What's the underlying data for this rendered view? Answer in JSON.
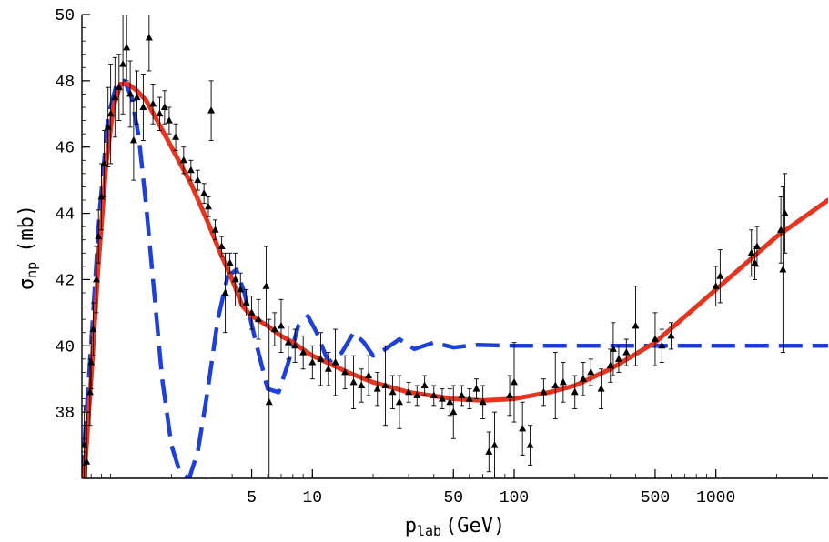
{
  "chart_data": {
    "type": "scatter",
    "title": "",
    "xlabel": "p_lab (GeV)",
    "xlabel_main": "p",
    "xlabel_sub": "lab",
    "xlabel_unit": "(GeV)",
    "ylabel": "σ_np (mb)",
    "ylabel_main": "σ",
    "ylabel_sub": "np",
    "ylabel_unit": "(mb)",
    "xscale": "log",
    "xlim": [
      0.72,
      3600
    ],
    "ylim": [
      36,
      50
    ],
    "xticks": [
      5,
      10,
      50,
      100,
      500,
      1000
    ],
    "xtick_labels": [
      "5",
      "10",
      "50",
      "100",
      "500",
      "1000"
    ],
    "yticks": [
      38,
      40,
      42,
      44,
      46,
      48,
      50
    ],
    "ytick_labels": [
      "38",
      "40",
      "42",
      "44",
      "46",
      "48",
      "50"
    ],
    "grid": false,
    "colors": {
      "data": "#000000",
      "fit": "#e8341c",
      "model": "#1d3fdc"
    },
    "series": [
      {
        "type": "scatter",
        "marker": "triangle",
        "points": [
          {
            "x": 0.74,
            "y": 37.0,
            "err": 1.2
          },
          {
            "x": 0.76,
            "y": 36.5,
            "err": 1.5
          },
          {
            "x": 0.79,
            "y": 38.6,
            "err": 1.0
          },
          {
            "x": 0.8,
            "y": 39.5,
            "err": 0.8
          },
          {
            "x": 0.82,
            "y": 40.5,
            "err": 0.8
          },
          {
            "x": 0.85,
            "y": 42.0,
            "err": 1.0
          },
          {
            "x": 0.87,
            "y": 43.3,
            "err": 0.8
          },
          {
            "x": 0.9,
            "y": 44.5,
            "err": 1.0
          },
          {
            "x": 0.93,
            "y": 45.5,
            "err": 1.0
          },
          {
            "x": 0.97,
            "y": 46.6,
            "err": 1.2
          },
          {
            "x": 1.0,
            "y": 47.0,
            "err": 1.5
          },
          {
            "x": 1.05,
            "y": 47.5,
            "err": 1.2
          },
          {
            "x": 1.1,
            "y": 47.8,
            "err": 1.0
          },
          {
            "x": 1.15,
            "y": 48.5,
            "err": 1.5
          },
          {
            "x": 1.2,
            "y": 49.0,
            "err": 1.0
          },
          {
            "x": 1.25,
            "y": 47.6,
            "err": 1.0
          },
          {
            "x": 1.3,
            "y": 46.2,
            "err": 1.2
          },
          {
            "x": 1.35,
            "y": 47.5,
            "err": 0.8
          },
          {
            "x": 1.45,
            "y": 47.2,
            "err": 1.0
          },
          {
            "x": 1.55,
            "y": 49.3,
            "err": 1.0
          },
          {
            "x": 1.62,
            "y": 47.3,
            "err": 0.6
          },
          {
            "x": 1.75,
            "y": 47.0,
            "err": 0.5
          },
          {
            "x": 1.85,
            "y": 47.2,
            "err": 0.5
          },
          {
            "x": 1.95,
            "y": 46.8,
            "err": 0.4
          },
          {
            "x": 2.1,
            "y": 46.3,
            "err": 0.4
          },
          {
            "x": 2.3,
            "y": 45.6,
            "err": 0.4
          },
          {
            "x": 2.5,
            "y": 45.3,
            "err": 0.3
          },
          {
            "x": 2.7,
            "y": 45.0,
            "err": 0.3
          },
          {
            "x": 2.9,
            "y": 44.6,
            "err": 0.3
          },
          {
            "x": 3.05,
            "y": 44.2,
            "err": 0.3
          },
          {
            "x": 3.15,
            "y": 47.1,
            "err": 0.9
          },
          {
            "x": 3.3,
            "y": 43.5,
            "err": 0.3
          },
          {
            "x": 3.55,
            "y": 43.0,
            "err": 0.3
          },
          {
            "x": 3.7,
            "y": 41.6,
            "err": 1.2
          },
          {
            "x": 3.9,
            "y": 42.5,
            "err": 0.3
          },
          {
            "x": 4.15,
            "y": 42.0,
            "err": 0.8
          },
          {
            "x": 4.4,
            "y": 41.7,
            "err": 0.5
          },
          {
            "x": 4.7,
            "y": 41.3,
            "err": 0.4
          },
          {
            "x": 5.0,
            "y": 41.0,
            "err": 0.5
          },
          {
            "x": 5.4,
            "y": 40.8,
            "err": 0.6
          },
          {
            "x": 5.9,
            "y": 41.8,
            "err": 1.2
          },
          {
            "x": 6.1,
            "y": 38.3,
            "err": 2.5
          },
          {
            "x": 6.5,
            "y": 40.5,
            "err": 0.5
          },
          {
            "x": 7.0,
            "y": 40.6,
            "err": 0.8
          },
          {
            "x": 7.6,
            "y": 40.1,
            "err": 0.5
          },
          {
            "x": 8.2,
            "y": 40.0,
            "err": 0.5
          },
          {
            "x": 9.0,
            "y": 39.8,
            "err": 0.5
          },
          {
            "x": 10.0,
            "y": 39.5,
            "err": 0.5
          },
          {
            "x": 11.0,
            "y": 39.6,
            "err": 0.8
          },
          {
            "x": 12.0,
            "y": 39.3,
            "err": 0.5
          },
          {
            "x": 13.0,
            "y": 39.5,
            "err": 1.0
          },
          {
            "x": 14.5,
            "y": 39.2,
            "err": 0.5
          },
          {
            "x": 16.0,
            "y": 38.9,
            "err": 0.8
          },
          {
            "x": 17.5,
            "y": 38.8,
            "err": 0.5
          },
          {
            "x": 19.0,
            "y": 39.1,
            "err": 0.6
          },
          {
            "x": 21.0,
            "y": 38.7,
            "err": 0.5
          },
          {
            "x": 23.0,
            "y": 38.8,
            "err": 1.2
          },
          {
            "x": 25.0,
            "y": 38.6,
            "err": 0.5
          },
          {
            "x": 27.0,
            "y": 38.3,
            "err": 0.8
          },
          {
            "x": 30.0,
            "y": 38.6,
            "err": 0.3
          },
          {
            "x": 33.0,
            "y": 38.5,
            "err": 0.3
          },
          {
            "x": 36.0,
            "y": 38.8,
            "err": 0.3
          },
          {
            "x": 40.0,
            "y": 38.5,
            "err": 0.3
          },
          {
            "x": 44.0,
            "y": 38.4,
            "err": 0.3
          },
          {
            "x": 48.0,
            "y": 38.3,
            "err": 0.4
          },
          {
            "x": 50.0,
            "y": 38.0,
            "err": 0.8
          },
          {
            "x": 55.0,
            "y": 38.5,
            "err": 0.3
          },
          {
            "x": 60.0,
            "y": 38.4,
            "err": 0.3
          },
          {
            "x": 65.0,
            "y": 38.7,
            "err": 0.3
          },
          {
            "x": 70.0,
            "y": 38.3,
            "err": 0.5
          },
          {
            "x": 75.0,
            "y": 36.8,
            "err": 0.6
          },
          {
            "x": 80.0,
            "y": 37.0,
            "err": 1.0
          },
          {
            "x": 95.0,
            "y": 38.5,
            "err": 0.6
          },
          {
            "x": 100.0,
            "y": 38.9,
            "err": 1.2
          },
          {
            "x": 110.0,
            "y": 37.5,
            "err": 0.8
          },
          {
            "x": 120.0,
            "y": 37.0,
            "err": 0.6
          },
          {
            "x": 140.0,
            "y": 38.6,
            "err": 0.4
          },
          {
            "x": 160.0,
            "y": 38.8,
            "err": 1.0
          },
          {
            "x": 175.0,
            "y": 38.9,
            "err": 0.6
          },
          {
            "x": 200.0,
            "y": 38.6,
            "err": 0.5
          },
          {
            "x": 220.0,
            "y": 39.0,
            "err": 0.5
          },
          {
            "x": 240.0,
            "y": 39.2,
            "err": 0.4
          },
          {
            "x": 270.0,
            "y": 38.7,
            "err": 0.6
          },
          {
            "x": 300.0,
            "y": 39.4,
            "err": 0.5
          },
          {
            "x": 310.0,
            "y": 39.9,
            "err": 0.8
          },
          {
            "x": 330.0,
            "y": 39.6,
            "err": 0.4
          },
          {
            "x": 360.0,
            "y": 39.8,
            "err": 0.4
          },
          {
            "x": 400.0,
            "y": 40.6,
            "err": 1.2
          },
          {
            "x": 500.0,
            "y": 40.2,
            "err": 0.8
          },
          {
            "x": 540.0,
            "y": 40.0,
            "err": 0.5
          },
          {
            "x": 600.0,
            "y": 40.3,
            "err": 0.4
          },
          {
            "x": 1000.0,
            "y": 41.8,
            "err": 0.6
          },
          {
            "x": 1050.0,
            "y": 42.1,
            "err": 0.8
          },
          {
            "x": 1500.0,
            "y": 42.8,
            "err": 0.7
          },
          {
            "x": 1560.0,
            "y": 42.5,
            "err": 0.5
          },
          {
            "x": 1600.0,
            "y": 43.0,
            "err": 0.6
          },
          {
            "x": 2100.0,
            "y": 43.5,
            "err": 1.0
          },
          {
            "x": 2150.0,
            "y": 42.3,
            "err": 2.5
          },
          {
            "x": 2200.0,
            "y": 44.0,
            "err": 1.2
          }
        ]
      },
      {
        "type": "line",
        "style": "solid",
        "points": [
          {
            "x": 0.74,
            "y": 36.0
          },
          {
            "x": 0.8,
            "y": 39.0
          },
          {
            "x": 0.87,
            "y": 42.5
          },
          {
            "x": 0.95,
            "y": 45.5
          },
          {
            "x": 1.03,
            "y": 47.2
          },
          {
            "x": 1.12,
            "y": 47.9
          },
          {
            "x": 1.22,
            "y": 47.9
          },
          {
            "x": 1.35,
            "y": 47.7
          },
          {
            "x": 1.5,
            "y": 47.4
          },
          {
            "x": 1.7,
            "y": 46.8
          },
          {
            "x": 2.0,
            "y": 46.0
          },
          {
            "x": 2.5,
            "y": 44.9
          },
          {
            "x": 3.0,
            "y": 43.8
          },
          {
            "x": 3.5,
            "y": 42.8
          },
          {
            "x": 4.0,
            "y": 42.0
          },
          {
            "x": 4.5,
            "y": 41.2
          },
          {
            "x": 5.0,
            "y": 40.9
          },
          {
            "x": 6.0,
            "y": 40.6
          },
          {
            "x": 7.0,
            "y": 40.3
          },
          {
            "x": 8.0,
            "y": 40.1
          },
          {
            "x": 10.0,
            "y": 39.7
          },
          {
            "x": 15.0,
            "y": 39.2
          },
          {
            "x": 20.0,
            "y": 38.9
          },
          {
            "x": 30.0,
            "y": 38.6
          },
          {
            "x": 50.0,
            "y": 38.4
          },
          {
            "x": 70.0,
            "y": 38.35
          },
          {
            "x": 100.0,
            "y": 38.4
          },
          {
            "x": 150.0,
            "y": 38.6
          },
          {
            "x": 200.0,
            "y": 38.8
          },
          {
            "x": 300.0,
            "y": 39.3
          },
          {
            "x": 500.0,
            "y": 40.1
          },
          {
            "x": 1000.0,
            "y": 41.7
          },
          {
            "x": 2000.0,
            "y": 43.3
          },
          {
            "x": 3600.0,
            "y": 44.4
          }
        ]
      },
      {
        "type": "line",
        "style": "dashed",
        "points": [
          {
            "x": 0.72,
            "y": 36.0
          },
          {
            "x": 0.8,
            "y": 40.0
          },
          {
            "x": 0.88,
            "y": 44.0
          },
          {
            "x": 0.97,
            "y": 46.9
          },
          {
            "x": 1.07,
            "y": 47.9
          },
          {
            "x": 1.17,
            "y": 48.0
          },
          {
            "x": 1.27,
            "y": 47.5
          },
          {
            "x": 1.38,
            "y": 46.3
          },
          {
            "x": 1.5,
            "y": 44.2
          },
          {
            "x": 1.65,
            "y": 41.5
          },
          {
            "x": 1.8,
            "y": 39.0
          },
          {
            "x": 2.0,
            "y": 37.0
          },
          {
            "x": 2.2,
            "y": 36.2
          },
          {
            "x": 2.45,
            "y": 36.0
          },
          {
            "x": 2.7,
            "y": 36.8
          },
          {
            "x": 3.0,
            "y": 38.5
          },
          {
            "x": 3.4,
            "y": 40.8
          },
          {
            "x": 3.8,
            "y": 42.1
          },
          {
            "x": 4.2,
            "y": 42.3
          },
          {
            "x": 4.6,
            "y": 41.6
          },
          {
            "x": 5.2,
            "y": 40.2
          },
          {
            "x": 6.0,
            "y": 38.7
          },
          {
            "x": 6.8,
            "y": 38.6
          },
          {
            "x": 7.6,
            "y": 39.5
          },
          {
            "x": 8.5,
            "y": 40.6
          },
          {
            "x": 9.5,
            "y": 40.9
          },
          {
            "x": 10.5,
            "y": 40.4
          },
          {
            "x": 12.0,
            "y": 39.5
          },
          {
            "x": 14.0,
            "y": 39.8
          },
          {
            "x": 16.0,
            "y": 40.4
          },
          {
            "x": 18.0,
            "y": 40.1
          },
          {
            "x": 20.0,
            "y": 39.7
          },
          {
            "x": 23.0,
            "y": 39.9
          },
          {
            "x": 27.0,
            "y": 40.2
          },
          {
            "x": 32.0,
            "y": 39.9
          },
          {
            "x": 40.0,
            "y": 40.1
          },
          {
            "x": 50.0,
            "y": 39.95
          },
          {
            "x": 65.0,
            "y": 40.03
          },
          {
            "x": 100.0,
            "y": 40.0
          },
          {
            "x": 3600.0,
            "y": 40.0
          }
        ]
      }
    ]
  }
}
